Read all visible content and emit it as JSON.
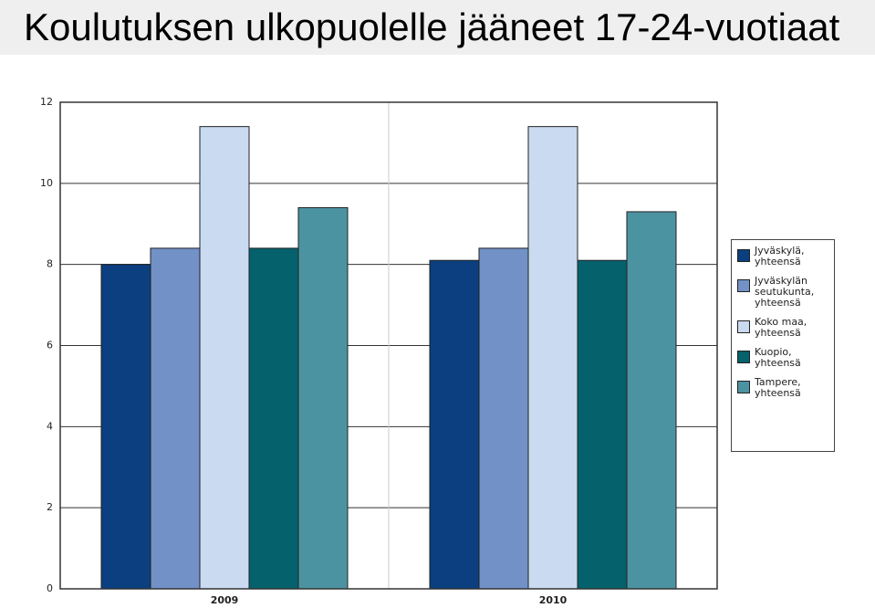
{
  "chart_data": {
    "type": "bar",
    "title": "Koulutuksen ulkopuolelle jääneet 17-24-vuotiaat",
    "categories": [
      "2009",
      "2010"
    ],
    "series": [
      {
        "name": "Jyväskylä, yhteensä",
        "color": "#0b3f7f",
        "values": [
          8.0,
          8.1
        ]
      },
      {
        "name": "Jyväskylän seutukunta, yhteensä",
        "color": "#7291c7",
        "values": [
          8.4,
          8.4
        ]
      },
      {
        "name": "Koko maa, yhteensä",
        "color": "#c9daf1",
        "values": [
          11.4,
          11.4
        ]
      },
      {
        "name": "Kuopio, yhteensä",
        "color": "#05616c",
        "values": [
          8.4,
          8.1
        ]
      },
      {
        "name": "Tampere, yhteensä",
        "color": "#4c93a2",
        "values": [
          9.4,
          9.3
        ]
      }
    ],
    "ylim": [
      0,
      12
    ],
    "yticks": [
      0,
      2,
      4,
      6,
      8,
      10,
      12
    ],
    "grid": true
  }
}
